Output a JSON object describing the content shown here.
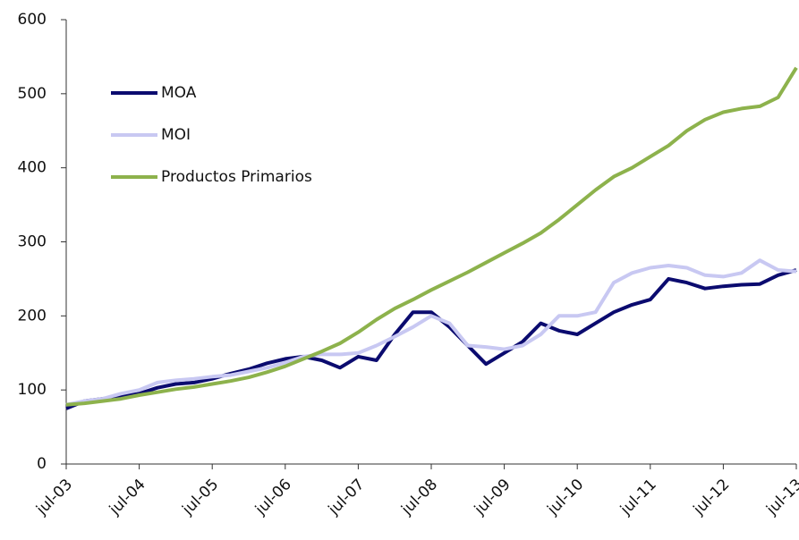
{
  "chart_data": {
    "type": "line",
    "categories": [
      "jul-03",
      null,
      null,
      null,
      "jul-04",
      null,
      null,
      null,
      "jul-05",
      null,
      null,
      null,
      "jul-06",
      null,
      null,
      null,
      "jul-07",
      null,
      null,
      null,
      "jul-08",
      null,
      null,
      null,
      "jul-09",
      null,
      null,
      null,
      "jul-10",
      null,
      null,
      null,
      "jul-11",
      null,
      null,
      null,
      "jul-12",
      null,
      null,
      null,
      "jul-13"
    ],
    "series": [
      {
        "name": "MOA",
        "color": "#0b0b6f",
        "values": [
          75,
          85,
          88,
          92,
          95,
          103,
          108,
          110,
          115,
          122,
          128,
          136,
          142,
          145,
          140,
          130,
          145,
          140,
          175,
          205,
          205,
          185,
          160,
          135,
          150,
          165,
          190,
          180,
          175,
          190,
          205,
          215,
          222,
          250,
          245,
          237,
          240,
          242,
          243,
          255,
          262
        ]
      },
      {
        "name": "MOI",
        "color": "#c8c8f2",
        "values": [
          80,
          85,
          88,
          95,
          100,
          110,
          113,
          115,
          118,
          120,
          125,
          130,
          137,
          145,
          148,
          148,
          150,
          160,
          172,
          185,
          200,
          190,
          160,
          158,
          155,
          160,
          175,
          200,
          200,
          205,
          245,
          258,
          265,
          268,
          265,
          255,
          253,
          258,
          275,
          262,
          260
        ]
      },
      {
        "name": "Productos Primarios",
        "color": "#8db24c",
        "values": [
          80,
          82,
          85,
          88,
          93,
          97,
          101,
          104,
          108,
          112,
          117,
          124,
          132,
          142,
          152,
          163,
          178,
          195,
          210,
          222,
          235,
          247,
          259,
          272,
          285,
          298,
          312,
          330,
          350,
          370,
          388,
          400,
          415,
          430,
          450,
          465,
          475,
          480,
          483,
          495,
          535
        ]
      }
    ],
    "ylim": [
      0,
      600
    ],
    "yticks": [
      0,
      100,
      200,
      300,
      400,
      500,
      600
    ],
    "grid": false,
    "legend": "upper left"
  }
}
